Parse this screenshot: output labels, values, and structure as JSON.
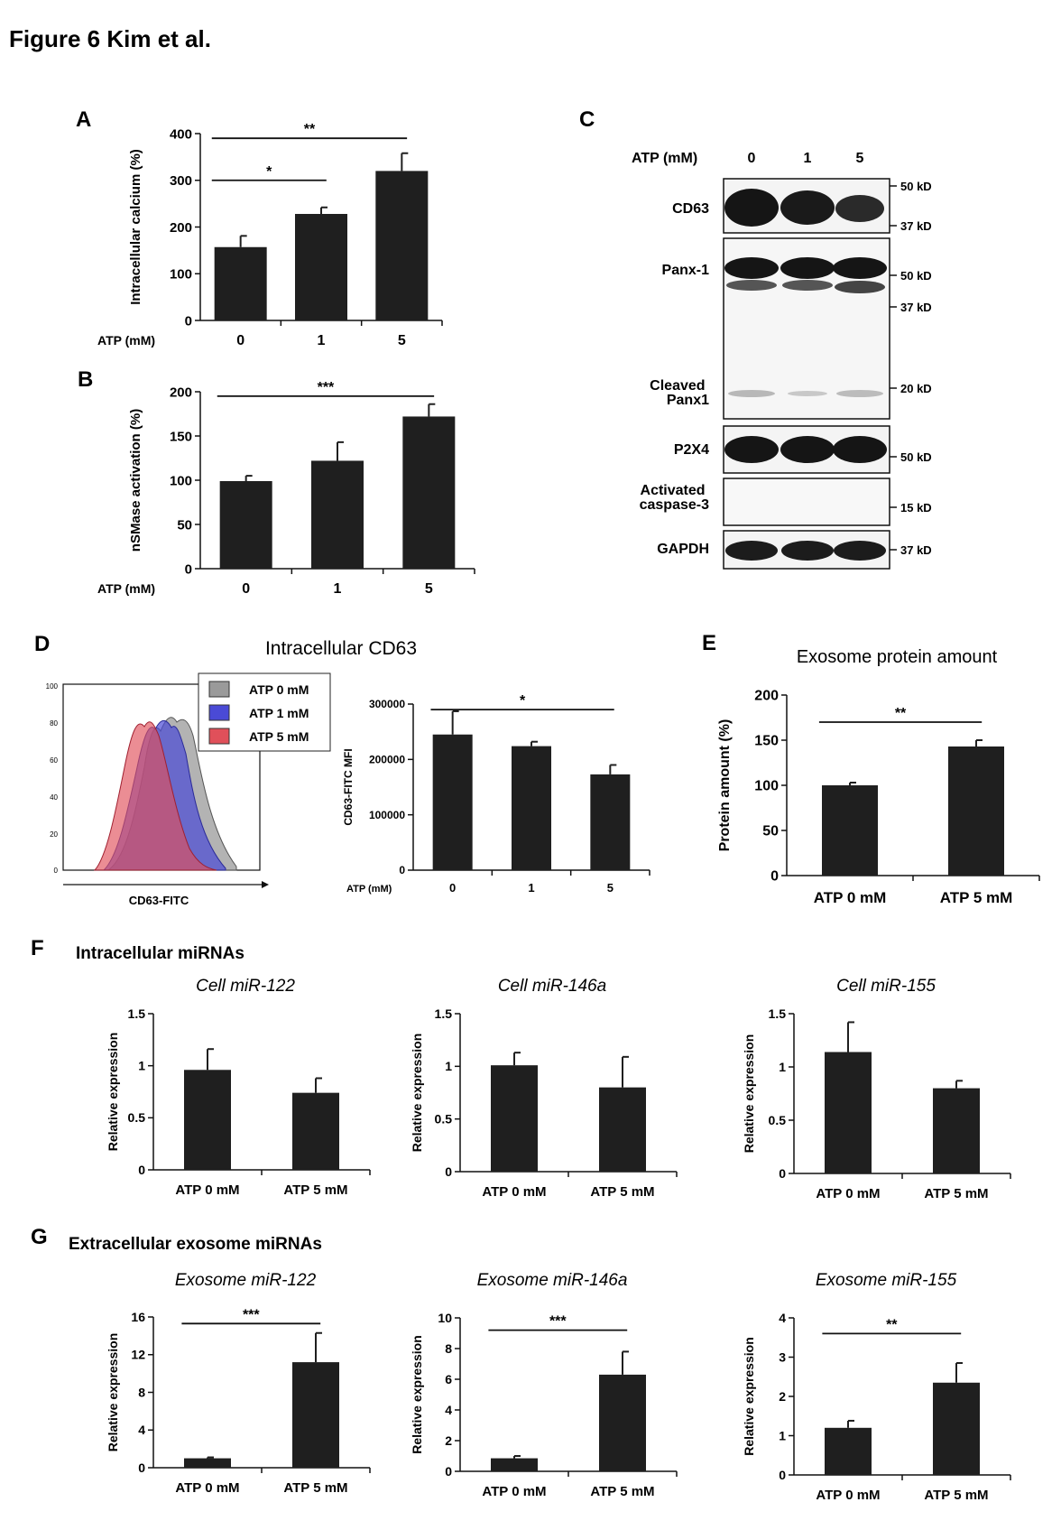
{
  "figure_title": "Figure 6 Kim et al.",
  "colors": {
    "bar": "#1f1f1f",
    "axis": "#111111",
    "hist_gray": "#9a9a9a",
    "hist_blue": "#4a4ad6",
    "hist_red": "#e0505a"
  },
  "chart_data": [
    {
      "id": "A",
      "panel": "A",
      "type": "bar",
      "categories": [
        "0",
        "1",
        "5"
      ],
      "values": [
        157,
        228,
        320
      ],
      "errors": [
        24,
        14,
        38
      ],
      "ylabel": "Intracellular calcium (%)",
      "xlabel": "ATP (mM)",
      "ylim": [
        0,
        400
      ],
      "ticks": [
        0,
        100,
        200,
        300,
        400
      ],
      "title": "",
      "sig": [
        {
          "from": 0,
          "to": 1,
          "y": 300,
          "label": "*"
        },
        {
          "from": 0,
          "to": 2,
          "y": 390,
          "label": "**"
        }
      ]
    },
    {
      "id": "B",
      "panel": "B",
      "type": "bar",
      "categories": [
        "0",
        "1",
        "5"
      ],
      "values": [
        99,
        122,
        172
      ],
      "errors": [
        6,
        21,
        14
      ],
      "ylabel": "nSMase activation (%)",
      "xlabel": "ATP (mM)",
      "ylim": [
        0,
        200
      ],
      "ticks": [
        0,
        50,
        100,
        150,
        200
      ],
      "title": "",
      "sig": [
        {
          "from": 0,
          "to": 2,
          "y": 195,
          "label": "***"
        }
      ]
    },
    {
      "id": "D",
      "type": "bar",
      "categories": [
        "0",
        "1",
        "5"
      ],
      "values": [
        245000,
        224000,
        173000
      ],
      "errors": [
        42000,
        8000,
        17000
      ],
      "ylabel": "CD63-FITC MFI",
      "xlabel": "ATP (mM)",
      "ylim": [
        0,
        300000
      ],
      "ticks": [
        0,
        100000,
        200000,
        300000
      ],
      "title": "",
      "sig": [
        {
          "from": 0,
          "to": 2,
          "y": 290000,
          "label": "*"
        }
      ]
    },
    {
      "id": "E",
      "panel": "E",
      "type": "bar",
      "categories": [
        "ATP 0 mM",
        "ATP 5 mM"
      ],
      "values": [
        100,
        143
      ],
      "errors": [
        3,
        7
      ],
      "ylabel": "Protein amount (%)",
      "xlabel": "",
      "ylim": [
        0,
        200
      ],
      "ticks": [
        0,
        50,
        100,
        150,
        200
      ],
      "title": "Exosome protein amount",
      "sig": [
        {
          "from": 0,
          "to": 1,
          "y": 170,
          "label": "**"
        }
      ]
    },
    {
      "id": "F1",
      "panel": "F",
      "type": "bar",
      "categories": [
        "ATP 0 mM",
        "ATP 5 mM"
      ],
      "values": [
        0.96,
        0.74
      ],
      "errors": [
        0.2,
        0.14
      ],
      "ylabel": "Relative expression",
      "xlabel": "",
      "ylim": [
        0,
        1.5
      ],
      "ticks": [
        0,
        0.5,
        1,
        1.5
      ],
      "title": "Cell miR-122",
      "sig": []
    },
    {
      "id": "F2",
      "type": "bar",
      "categories": [
        "ATP 0 mM",
        "ATP 5 mM"
      ],
      "values": [
        1.01,
        0.8
      ],
      "errors": [
        0.12,
        0.29
      ],
      "ylabel": "Relative expression",
      "xlabel": "",
      "ylim": [
        0,
        1.5
      ],
      "ticks": [
        0,
        0.5,
        1,
        1.5
      ],
      "title": "Cell  miR-146a",
      "sig": []
    },
    {
      "id": "F3",
      "type": "bar",
      "categories": [
        "ATP 0 mM",
        "ATP 5 mM"
      ],
      "values": [
        1.14,
        0.8
      ],
      "errors": [
        0.28,
        0.07
      ],
      "ylabel": "Relative expression",
      "xlabel": "",
      "ylim": [
        0,
        1.5
      ],
      "ticks": [
        0,
        0.5,
        1,
        1.5
      ],
      "title": "Cell miR-155",
      "sig": []
    },
    {
      "id": "G1",
      "panel": "G",
      "type": "bar",
      "categories": [
        "ATP 0 mM",
        "ATP 5 mM"
      ],
      "values": [
        1.0,
        11.2
      ],
      "errors": [
        0.1,
        3.1
      ],
      "ylabel": "Relative expression",
      "xlabel": "",
      "ylim": [
        0,
        16
      ],
      "ticks": [
        0,
        4,
        8,
        12,
        16
      ],
      "title": "Exosome miR-122",
      "sig": [
        {
          "from": 0,
          "to": 1,
          "y": 15.3,
          "label": "***"
        }
      ]
    },
    {
      "id": "G2",
      "type": "bar",
      "categories": [
        "ATP 0 mM",
        "ATP 5 mM"
      ],
      "values": [
        0.85,
        6.3
      ],
      "errors": [
        0.15,
        1.5
      ],
      "ylabel": "Relative expression",
      "xlabel": "",
      "ylim": [
        0,
        10
      ],
      "ticks": [
        0,
        2,
        4,
        6,
        8,
        10
      ],
      "title": "Exosome  miR-146a",
      "sig": [
        {
          "from": 0,
          "to": 1,
          "y": 9.2,
          "label": "***"
        }
      ]
    },
    {
      "id": "G3",
      "type": "bar",
      "categories": [
        "ATP 0 mM",
        "ATP 5 mM"
      ],
      "values": [
        1.2,
        2.35
      ],
      "errors": [
        0.18,
        0.5
      ],
      "ylabel": "Relative expression",
      "xlabel": "",
      "ylim": [
        0,
        4
      ],
      "ticks": [
        0,
        1,
        2,
        3,
        4
      ],
      "title": "Exosome miR-155",
      "sig": [
        {
          "from": 0,
          "to": 1,
          "y": 3.6,
          "label": "**"
        }
      ]
    }
  ],
  "panel_c": {
    "letter": "C",
    "atp_label": "ATP (mM)",
    "lanes": [
      "0",
      "1",
      "5"
    ],
    "bands": [
      "CD63",
      "Panx-1",
      "Cleaved\nPanx1",
      "P2X4",
      "Activated\ncaspase-3",
      "GAPDH"
    ],
    "markers": [
      "50 kD",
      "37 kD",
      "50 kD",
      "37 kD",
      "20 kD",
      "50 kD",
      "15 kD",
      "37 kD"
    ]
  },
  "panel_d": {
    "letter": "D",
    "title": "Intracellular CD63",
    "x_label": "CD63-FITC",
    "y_ticks": [
      "100",
      "80",
      "60",
      "40",
      "20",
      "0"
    ],
    "legend": [
      "ATP 0 mM",
      "ATP 1 mM",
      "ATP 5 mM"
    ]
  },
  "section_f_title": "Intracellular miRNAs",
  "section_g_title": "Extracellular exosome miRNAs"
}
